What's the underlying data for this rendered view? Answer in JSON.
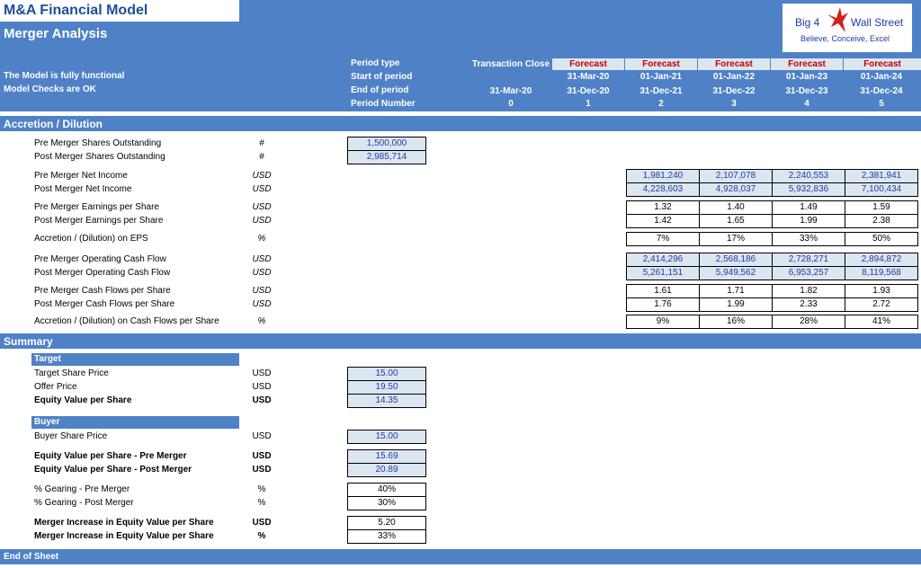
{
  "header": {
    "app_title": "M&A Financial Model",
    "sheet_title": "Merger Analysis",
    "status_1": "The Model is fully functional",
    "status_2": "Model Checks are OK",
    "logo": {
      "name": "Big 4",
      "name2": "Wall Street",
      "tagline": "Believe, Conceive, Excel"
    },
    "row_labels": [
      "Period type",
      "Start of period",
      "End of period",
      "Period Number"
    ],
    "transaction_close": {
      "label": "Transaction Close",
      "end": "31-Mar-20",
      "number": "0"
    },
    "periods": [
      {
        "type": "Forecast",
        "start": "31-Mar-20",
        "end": "31-Dec-20",
        "number": "1"
      },
      {
        "type": "Forecast",
        "start": "01-Jan-21",
        "end": "31-Dec-21",
        "number": "2"
      },
      {
        "type": "Forecast",
        "start": "01-Jan-22",
        "end": "31-Dec-22",
        "number": "3"
      },
      {
        "type": "Forecast",
        "start": "01-Jan-23",
        "end": "31-Dec-23",
        "number": "4"
      },
      {
        "type": "Forecast",
        "start": "01-Jan-24",
        "end": "31-Dec-24",
        "number": "5"
      }
    ]
  },
  "accretion": {
    "section_title": "Accretion / Dilution",
    "pre_shares": {
      "label": "Pre Merger Shares Outstanding",
      "unit": "#",
      "value": "1,500,000"
    },
    "post_shares": {
      "label": "Post Merger Shares Outstanding",
      "unit": "#",
      "value": "2,985,714"
    },
    "rows": [
      {
        "label": "Pre Merger Net Income",
        "unit": "USD",
        "values": [
          "1,981,240",
          "2,107,078",
          "2,240,553",
          "2,381,941"
        ]
      },
      {
        "label": "Post Merger Net Income",
        "unit": "USD",
        "values": [
          "4,228,603",
          "4,928,037",
          "5,932,836",
          "7,100,434"
        ]
      },
      {
        "label": "Pre Merger Earnings per Share",
        "unit": "USD",
        "values": [
          "1.32",
          "1.40",
          "1.49",
          "1.59"
        ]
      },
      {
        "label": "Post Merger Earnings per Share",
        "unit": "USD",
        "values": [
          "1.42",
          "1.65",
          "1.99",
          "2.38"
        ]
      },
      {
        "label": "Accretion / (Dilution) on EPS",
        "unit": "%",
        "values": [
          "7%",
          "17%",
          "33%",
          "50%"
        ]
      },
      {
        "label": "Pre Merger Operating Cash Flow",
        "unit": "USD",
        "values": [
          "2,414,296",
          "2,568,186",
          "2,728,271",
          "2,894,872"
        ]
      },
      {
        "label": "Post Merger Operating Cash Flow",
        "unit": "USD",
        "values": [
          "5,261,151",
          "5,949,562",
          "6,953,257",
          "8,119,568"
        ]
      },
      {
        "label": "Pre Merger Cash Flows per Share",
        "unit": "USD",
        "values": [
          "1.61",
          "1.71",
          "1.82",
          "1.93"
        ]
      },
      {
        "label": "Post Merger Cash Flows per Share",
        "unit": "USD",
        "values": [
          "1.76",
          "1.99",
          "2.33",
          "2.72"
        ]
      },
      {
        "label": "Accretion / (Dilution) on Cash Flows per Share",
        "unit": "%",
        "values": [
          "9%",
          "16%",
          "28%",
          "41%"
        ]
      }
    ]
  },
  "summary": {
    "section_title": "Summary",
    "target_title": "Target",
    "target_share_price": {
      "label": "Target Share Price",
      "unit": "USD",
      "value": "15.00"
    },
    "offer_price": {
      "label": "Offer Price",
      "unit": "USD",
      "value": "19.50"
    },
    "equity_value_target": {
      "label": "Equity Value per Share",
      "unit": "USD",
      "value": "14.35"
    },
    "buyer_title": "Buyer",
    "buyer_share_price": {
      "label": "Buyer Share Price",
      "unit": "USD",
      "value": "15.00"
    },
    "equity_pre": {
      "label": "Equity Value per Share - Pre Merger",
      "unit": "USD",
      "value": "15.69"
    },
    "equity_post": {
      "label": "Equity Value per Share - Post Merger",
      "unit": "USD",
      "value": "20.89"
    },
    "gearing_pre": {
      "label": "% Gearing - Pre Merger",
      "unit": "%",
      "value": "40%"
    },
    "gearing_post": {
      "label": "% Gearing - Post Merger",
      "unit": "%",
      "value": "30%"
    },
    "increase_usd": {
      "label": "Merger Increase in Equity Value per Share",
      "unit": "USD",
      "value": "5.20"
    },
    "increase_pct": {
      "label": "Merger Increase in Equity Value per Share",
      "unit": "%",
      "value": "33%"
    }
  },
  "footer": {
    "label": "End of Sheet"
  },
  "colors": {
    "band": "#4f81c7",
    "input_fill": "#dce6f1",
    "input_text": "#1f3ca6",
    "forecast_text": "#c00000"
  }
}
